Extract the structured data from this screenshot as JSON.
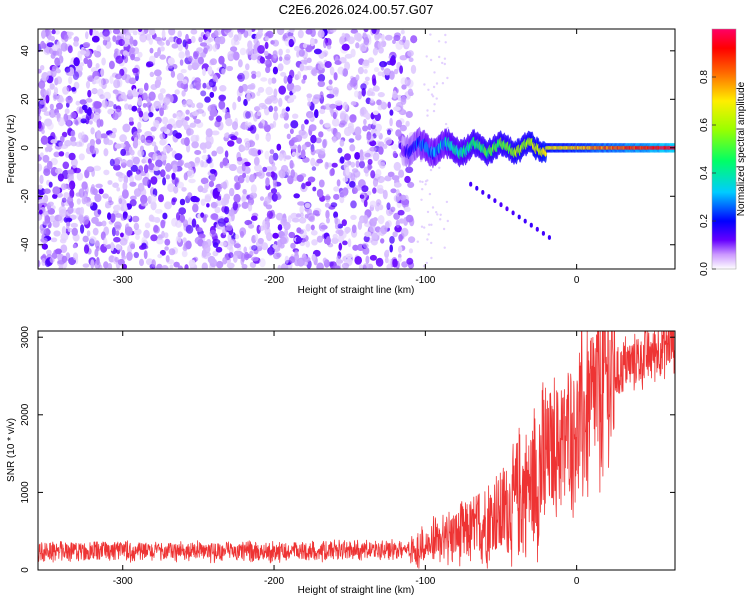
{
  "chart_data": [
    {
      "type": "heatmap",
      "title": "C2E6.2026.024.00.57.G07",
      "xlabel": "Height of straight line (km)",
      "ylabel": "Frequency (Hz)",
      "xlim": [
        -356,
        65
      ],
      "ylim": [
        -50,
        49
      ],
      "xticks": [
        -300,
        -200,
        -100,
        0
      ],
      "yticks": [
        -40,
        -20,
        0,
        20,
        40
      ],
      "colorbar": {
        "label": "Normalized spectral amplitude",
        "range": [
          0,
          1
        ],
        "ticks": [
          0.0,
          0.2,
          0.4,
          0.6,
          0.8
        ],
        "colormap": [
          "#ffffff",
          "#6600ff",
          "#0000ff",
          "#00ccff",
          "#00ff66",
          "#99ff00",
          "#ffee00",
          "#ff6600",
          "#ff0000",
          "#ff0066"
        ]
      },
      "features": [
        {
          "name": "noise floor",
          "x_range": [
            -356,
            -105
          ],
          "frequency_range": [
            -50,
            49
          ],
          "amplitude": 0.05
        },
        {
          "name": "carrier trace",
          "x_range": [
            -115,
            65
          ],
          "frequency": 0,
          "amplitude_start": 0.15,
          "amplitude_end": 0.95
        },
        {
          "name": "secondary trace",
          "x_start": -70,
          "x_end": -18,
          "frequency_start": -15,
          "frequency_end": -37
        }
      ]
    },
    {
      "type": "line",
      "title": "",
      "xlabel": "Height of straight line (km)",
      "ylabel": "SNR (10 * v/v)",
      "xlim": [
        -356,
        65
      ],
      "ylim": [
        0,
        3080
      ],
      "xticks": [
        -300,
        -200,
        -100,
        0
      ],
      "yticks": [
        0,
        1000,
        2000,
        3000
      ],
      "color": "#ee3333",
      "series": [
        {
          "name": "SNR",
          "x": [
            -356,
            -300,
            -250,
            -200,
            -150,
            -110,
            -100,
            -90,
            -80,
            -70,
            -60,
            -50,
            -40,
            -30,
            -20,
            -10,
            0,
            10,
            20,
            30,
            40,
            50,
            60,
            65
          ],
          "values": [
            240,
            240,
            235,
            235,
            250,
            260,
            300,
            380,
            450,
            500,
            620,
            700,
            900,
            1100,
            1400,
            1650,
            1900,
            2100,
            2450,
            2600,
            2700,
            2800,
            2900,
            2950
          ]
        }
      ]
    }
  ]
}
